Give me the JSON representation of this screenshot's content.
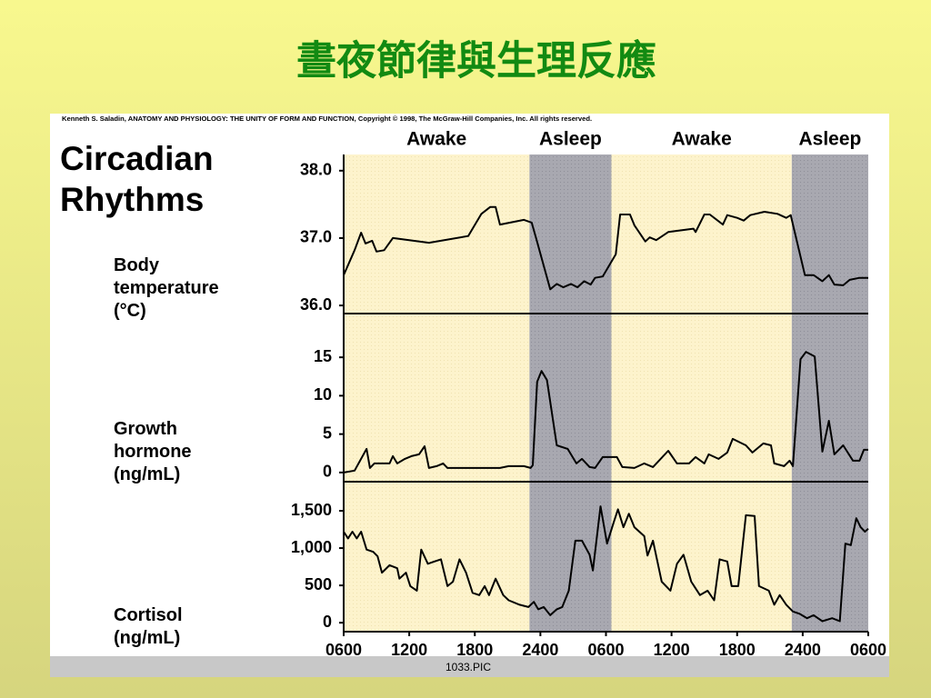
{
  "title": "晝夜節律與生理反應",
  "credit": "Kenneth S. Saladin, ANATOMY AND PHYSIOLOGY: THE UNITY OF FORM AND FUNCTION, Copyright © 1998, The McGraw-Hill Companies, Inc.  All rights reserved.",
  "heading": [
    "Circadian",
    "Rhythms"
  ],
  "footer": "1033.PIC",
  "periods": [
    {
      "label": "Awake",
      "start": 0,
      "end": 17,
      "shaded": false
    },
    {
      "label": "Asleep",
      "start": 17,
      "end": 24.5,
      "shaded": true
    },
    {
      "label": "Awake",
      "start": 24.5,
      "end": 41,
      "shaded": false
    },
    {
      "label": "Asleep",
      "start": 41,
      "end": 48,
      "shaded": true
    }
  ],
  "chart_data": [
    {
      "type": "line",
      "ylabel": [
        "Body",
        "temperature",
        "(°C)"
      ],
      "color": "#000000",
      "ylim": [
        35.88,
        38.24
      ],
      "yticks": [
        {
          "value": 36,
          "label": "36.0"
        },
        {
          "value": 37,
          "label": "37.0"
        },
        {
          "value": 38,
          "label": "38.0"
        }
      ],
      "x": [
        0,
        1,
        1.6,
        2,
        2.6,
        3,
        3.7,
        4.5,
        7.8,
        11.4,
        12.6,
        13.4,
        13.9,
        14.3,
        16.5,
        17.2,
        17.6,
        18.9,
        19.5,
        20.1,
        20.8,
        21.4,
        22,
        22.6,
        23,
        23.7,
        24.9,
        25.3,
        26.2,
        26.6,
        27.6,
        28,
        28.6,
        29.7,
        32,
        32.2,
        33,
        33.5,
        34.7,
        35.1,
        36,
        36.6,
        37.2,
        38.5,
        39.7,
        40.5,
        40.9,
        42.2,
        43,
        43.8,
        44.4,
        44.9,
        45.7,
        46.3,
        47.2,
        48
      ],
      "values": [
        36.45,
        36.82,
        37.08,
        36.92,
        36.96,
        36.8,
        36.82,
        37.0,
        36.93,
        37.03,
        37.36,
        37.46,
        37.46,
        37.2,
        37.27,
        37.23,
        37.0,
        36.24,
        36.32,
        36.27,
        36.32,
        36.27,
        36.36,
        36.31,
        36.41,
        36.43,
        36.76,
        37.35,
        37.35,
        37.19,
        36.95,
        37.01,
        36.97,
        37.09,
        37.14,
        37.09,
        37.35,
        37.35,
        37.2,
        37.34,
        37.3,
        37.26,
        37.34,
        37.39,
        37.36,
        37.3,
        37.34,
        36.45,
        36.45,
        36.36,
        36.45,
        36.31,
        36.3,
        36.38,
        36.41,
        36.41
      ]
    },
    {
      "type": "line",
      "ylabel": [
        "Growth",
        "hormone",
        "(ng/mL)"
      ],
      "color": "#000000",
      "ylim": [
        -1.2,
        20.7
      ],
      "yticks": [
        0,
        5,
        10,
        15
      ],
      "x": [
        0,
        1,
        2.1,
        2.4,
        2.8,
        4.2,
        4.5,
        4.9,
        5.6,
        6.2,
        6.9,
        7.4,
        7.8,
        8.5,
        9.1,
        9.5,
        14.3,
        15.1,
        16.5,
        17.1,
        17.3,
        17.7,
        18.1,
        18.6,
        19.5,
        20.5,
        21.3,
        21.8,
        22.5,
        23,
        23.7,
        25,
        25.5,
        26.6,
        27.5,
        28.3,
        29.7,
        30.5,
        31.6,
        32.2,
        33,
        33.4,
        34.3,
        35.1,
        35.6,
        36.8,
        37.4,
        38.4,
        39.1,
        39.4,
        40.3,
        40.8,
        41.1,
        41.8,
        42.3,
        43.1,
        43.8,
        44.4,
        44.9,
        45.7,
        46.6,
        47.2,
        47.6,
        48
      ],
      "values": [
        0,
        0.24,
        3.07,
        0.59,
        1.18,
        1.18,
        2.13,
        1.18,
        1.77,
        2.13,
        2.36,
        3.42,
        0.59,
        0.83,
        1.18,
        0.59,
        0.59,
        0.83,
        0.83,
        0.59,
        0.94,
        11.81,
        13.22,
        12.04,
        3.54,
        3.07,
        1.18,
        1.77,
        0.71,
        0.59,
        2.01,
        2.01,
        0.71,
        0.59,
        1.18,
        0.71,
        2.83,
        1.18,
        1.18,
        2.01,
        1.18,
        2.36,
        1.77,
        2.6,
        4.37,
        3.54,
        2.6,
        3.78,
        3.54,
        1.18,
        0.83,
        1.53,
        0.83,
        14.76,
        15.7,
        15.11,
        2.72,
        6.73,
        2.36,
        3.54,
        1.53,
        1.53,
        2.95,
        2.95
      ]
    },
    {
      "type": "line",
      "ylabel": [
        "Cortisol",
        "(ng/mL)"
      ],
      "color": "#000000",
      "ylim": [
        -120,
        1890
      ],
      "yticks": [
        0,
        500,
        {
          "value": 1000,
          "label": "1,000"
        },
        {
          "value": 1500,
          "label": "1,500"
        }
      ],
      "xlim": [
        0,
        48
      ],
      "xticks": [
        {
          "value": 0,
          "label": "0600"
        },
        {
          "value": 6,
          "label": "1200"
        },
        {
          "value": 12,
          "label": "1800"
        },
        {
          "value": 18,
          "label": "2400"
        },
        {
          "value": 24,
          "label": "0600"
        },
        {
          "value": 30,
          "label": "1200"
        },
        {
          "value": 36,
          "label": "1800"
        },
        {
          "value": 42,
          "label": "2400"
        },
        {
          "value": 48,
          "label": "0600"
        }
      ],
      "x": [
        0,
        0.4,
        0.8,
        1.2,
        1.6,
        2.1,
        2.7,
        3.1,
        3.5,
        4.2,
        4.9,
        5.1,
        5.7,
        6.1,
        6.7,
        7.1,
        7.7,
        8.3,
        8.9,
        9.5,
        10,
        10.6,
        11.2,
        11.8,
        12.4,
        12.9,
        13.3,
        13.9,
        14.6,
        15.1,
        16.1,
        16.9,
        17.4,
        17.8,
        18.3,
        18.9,
        19.5,
        20,
        20.6,
        21.2,
        21.8,
        22.5,
        22.8,
        23.5,
        24.1,
        24.7,
        25.1,
        25.6,
        26.1,
        26.6,
        27.5,
        27.8,
        28.3,
        29.1,
        29.9,
        30.5,
        31.1,
        31.8,
        32.6,
        33.3,
        33.9,
        34.4,
        35.1,
        35.5,
        36.1,
        36.8,
        37.6,
        38,
        38.9,
        39.4,
        39.9,
        40.5,
        41.1,
        41.7,
        42.4,
        43,
        43.8,
        44.7,
        45.4,
        45.9,
        46.4,
        46.9,
        47.3,
        47.7,
        48
      ],
      "values": [
        1220,
        1130,
        1220,
        1130,
        1220,
        980,
        950,
        890,
        670,
        770,
        730,
        590,
        670,
        490,
        430,
        980,
        790,
        820,
        850,
        490,
        550,
        850,
        670,
        400,
        370,
        490,
        370,
        590,
        370,
        300,
        240,
        210,
        280,
        180,
        210,
        100,
        180,
        210,
        430,
        1100,
        1100,
        910,
        700,
        1560,
        1060,
        1340,
        1520,
        1280,
        1460,
        1280,
        1160,
        900,
        1100,
        550,
        430,
        790,
        910,
        550,
        370,
        430,
        300,
        850,
        820,
        490,
        490,
        1440,
        1430,
        490,
        430,
        240,
        370,
        240,
        150,
        120,
        60,
        100,
        20,
        60,
        20,
        1060,
        1040,
        1400,
        1280,
        1220,
        1260
      ]
    }
  ]
}
